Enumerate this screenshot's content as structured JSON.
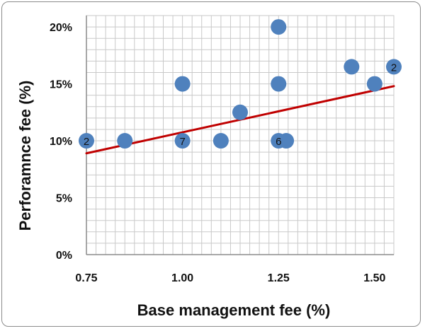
{
  "chart_data": {
    "type": "scatter",
    "title": "",
    "xlabel": "Base management fee (%)",
    "ylabel": "Perforamnce fee (%)",
    "xlim": [
      0.75,
      1.55
    ],
    "ylim": [
      0,
      21
    ],
    "x_ticks": [
      "0.75",
      "1.00",
      "1.25",
      "1.50"
    ],
    "x_tick_values": [
      0.75,
      1.0,
      1.25,
      1.5
    ],
    "y_ticks": [
      "0%",
      "5%",
      "10%",
      "15%",
      "20%"
    ],
    "y_tick_values": [
      0,
      5,
      10,
      15,
      20
    ],
    "grid": true,
    "colors": {
      "points": "#4f81bd",
      "trend": "#c00000",
      "grid": "#c9c9c9"
    },
    "points": [
      {
        "x": 0.75,
        "y": 10,
        "label": "2"
      },
      {
        "x": 0.85,
        "y": 10
      },
      {
        "x": 1.0,
        "y": 10,
        "label": "7"
      },
      {
        "x": 1.0,
        "y": 15
      },
      {
        "x": 1.1,
        "y": 10
      },
      {
        "x": 1.15,
        "y": 12.5
      },
      {
        "x": 1.25,
        "y": 20
      },
      {
        "x": 1.25,
        "y": 15
      },
      {
        "x": 1.25,
        "y": 10,
        "label": "6"
      },
      {
        "x": 1.27,
        "y": 10
      },
      {
        "x": 1.44,
        "y": 16.5
      },
      {
        "x": 1.5,
        "y": 15
      },
      {
        "x": 1.55,
        "y": 16.5,
        "label": "2"
      }
    ],
    "trendline": {
      "x": [
        0.75,
        1.55
      ],
      "y": [
        8.9,
        14.8
      ]
    }
  }
}
